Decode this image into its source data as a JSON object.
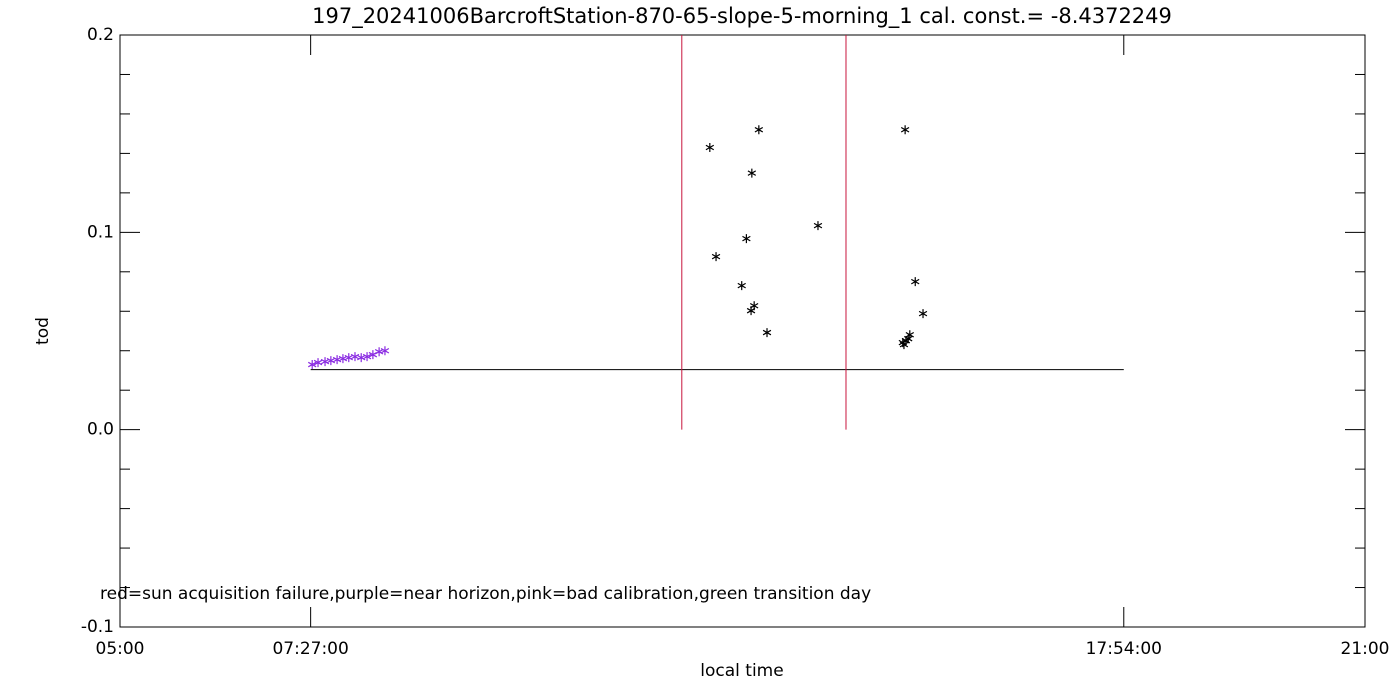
{
  "chart_data": {
    "type": "scatter",
    "title": "197_20241006BarcroftStation-870-65-slope-5-morning_1 cal. const.= -8.4372249",
    "x_label": "local time",
    "y_label": "tod",
    "annotation": "red=sun acquisition failure,purple=near horizon,pink=bad calibration,green transition day",
    "xlim": [
      5,
      21
    ],
    "ylim": [
      -0.1,
      0.2
    ],
    "xticks": [
      {
        "value": 5,
        "label": "05:00"
      },
      {
        "value": 7.45,
        "label": "07:27:00"
      },
      {
        "value": 17.9,
        "label": "17:54:00"
      },
      {
        "value": 21,
        "label": "21:00"
      }
    ],
    "yticks": [
      {
        "value": -0.1,
        "label": "-0.1"
      },
      {
        "value": 0,
        "label": "0.0"
      },
      0.1,
      0.2
    ],
    "yminorticks": [
      -0.08,
      -0.06,
      -0.04,
      -0.02,
      0.02,
      0.04,
      0.06,
      0.08,
      0.12,
      0.14,
      0.16,
      0.18
    ],
    "reference_line": {
      "y": 0.0304,
      "x": [
        7.45,
        17.9
      ],
      "color": "#000000"
    },
    "vertical_lines": {
      "x": [
        12.22,
        14.33
      ],
      "y": [
        0,
        0.2
      ],
      "color": "#c8143c"
    },
    "series": [
      {
        "color": "#8a2be2",
        "x": [
          7.47,
          7.545,
          7.635,
          7.71,
          7.79,
          7.865,
          7.94,
          8.02,
          8.1,
          8.175,
          8.25,
          8.33,
          8.405
        ],
        "values": [
          0.033,
          0.034,
          0.0345,
          0.035,
          0.0355,
          0.036,
          0.0365,
          0.037,
          0.0365,
          0.037,
          0.038,
          0.0395,
          0.04
        ]
      },
      {
        "color": "#000000",
        "x": [
          12.58,
          12.66,
          12.99,
          13.05,
          13.11,
          13.12,
          13.15,
          13.21,
          13.315,
          13.97,
          15.09,
          15.22,
          15.32,
          15.06,
          15.1,
          15.13,
          15.15,
          15.075
        ],
        "values": [
          0.143,
          0.0877,
          0.073,
          0.0968,
          0.0603,
          0.13,
          0.0628,
          0.152,
          0.0492,
          0.1034,
          0.152,
          0.075,
          0.0588,
          0.0441,
          0.0451,
          0.0461,
          0.0481,
          0.0431
        ]
      }
    ]
  }
}
